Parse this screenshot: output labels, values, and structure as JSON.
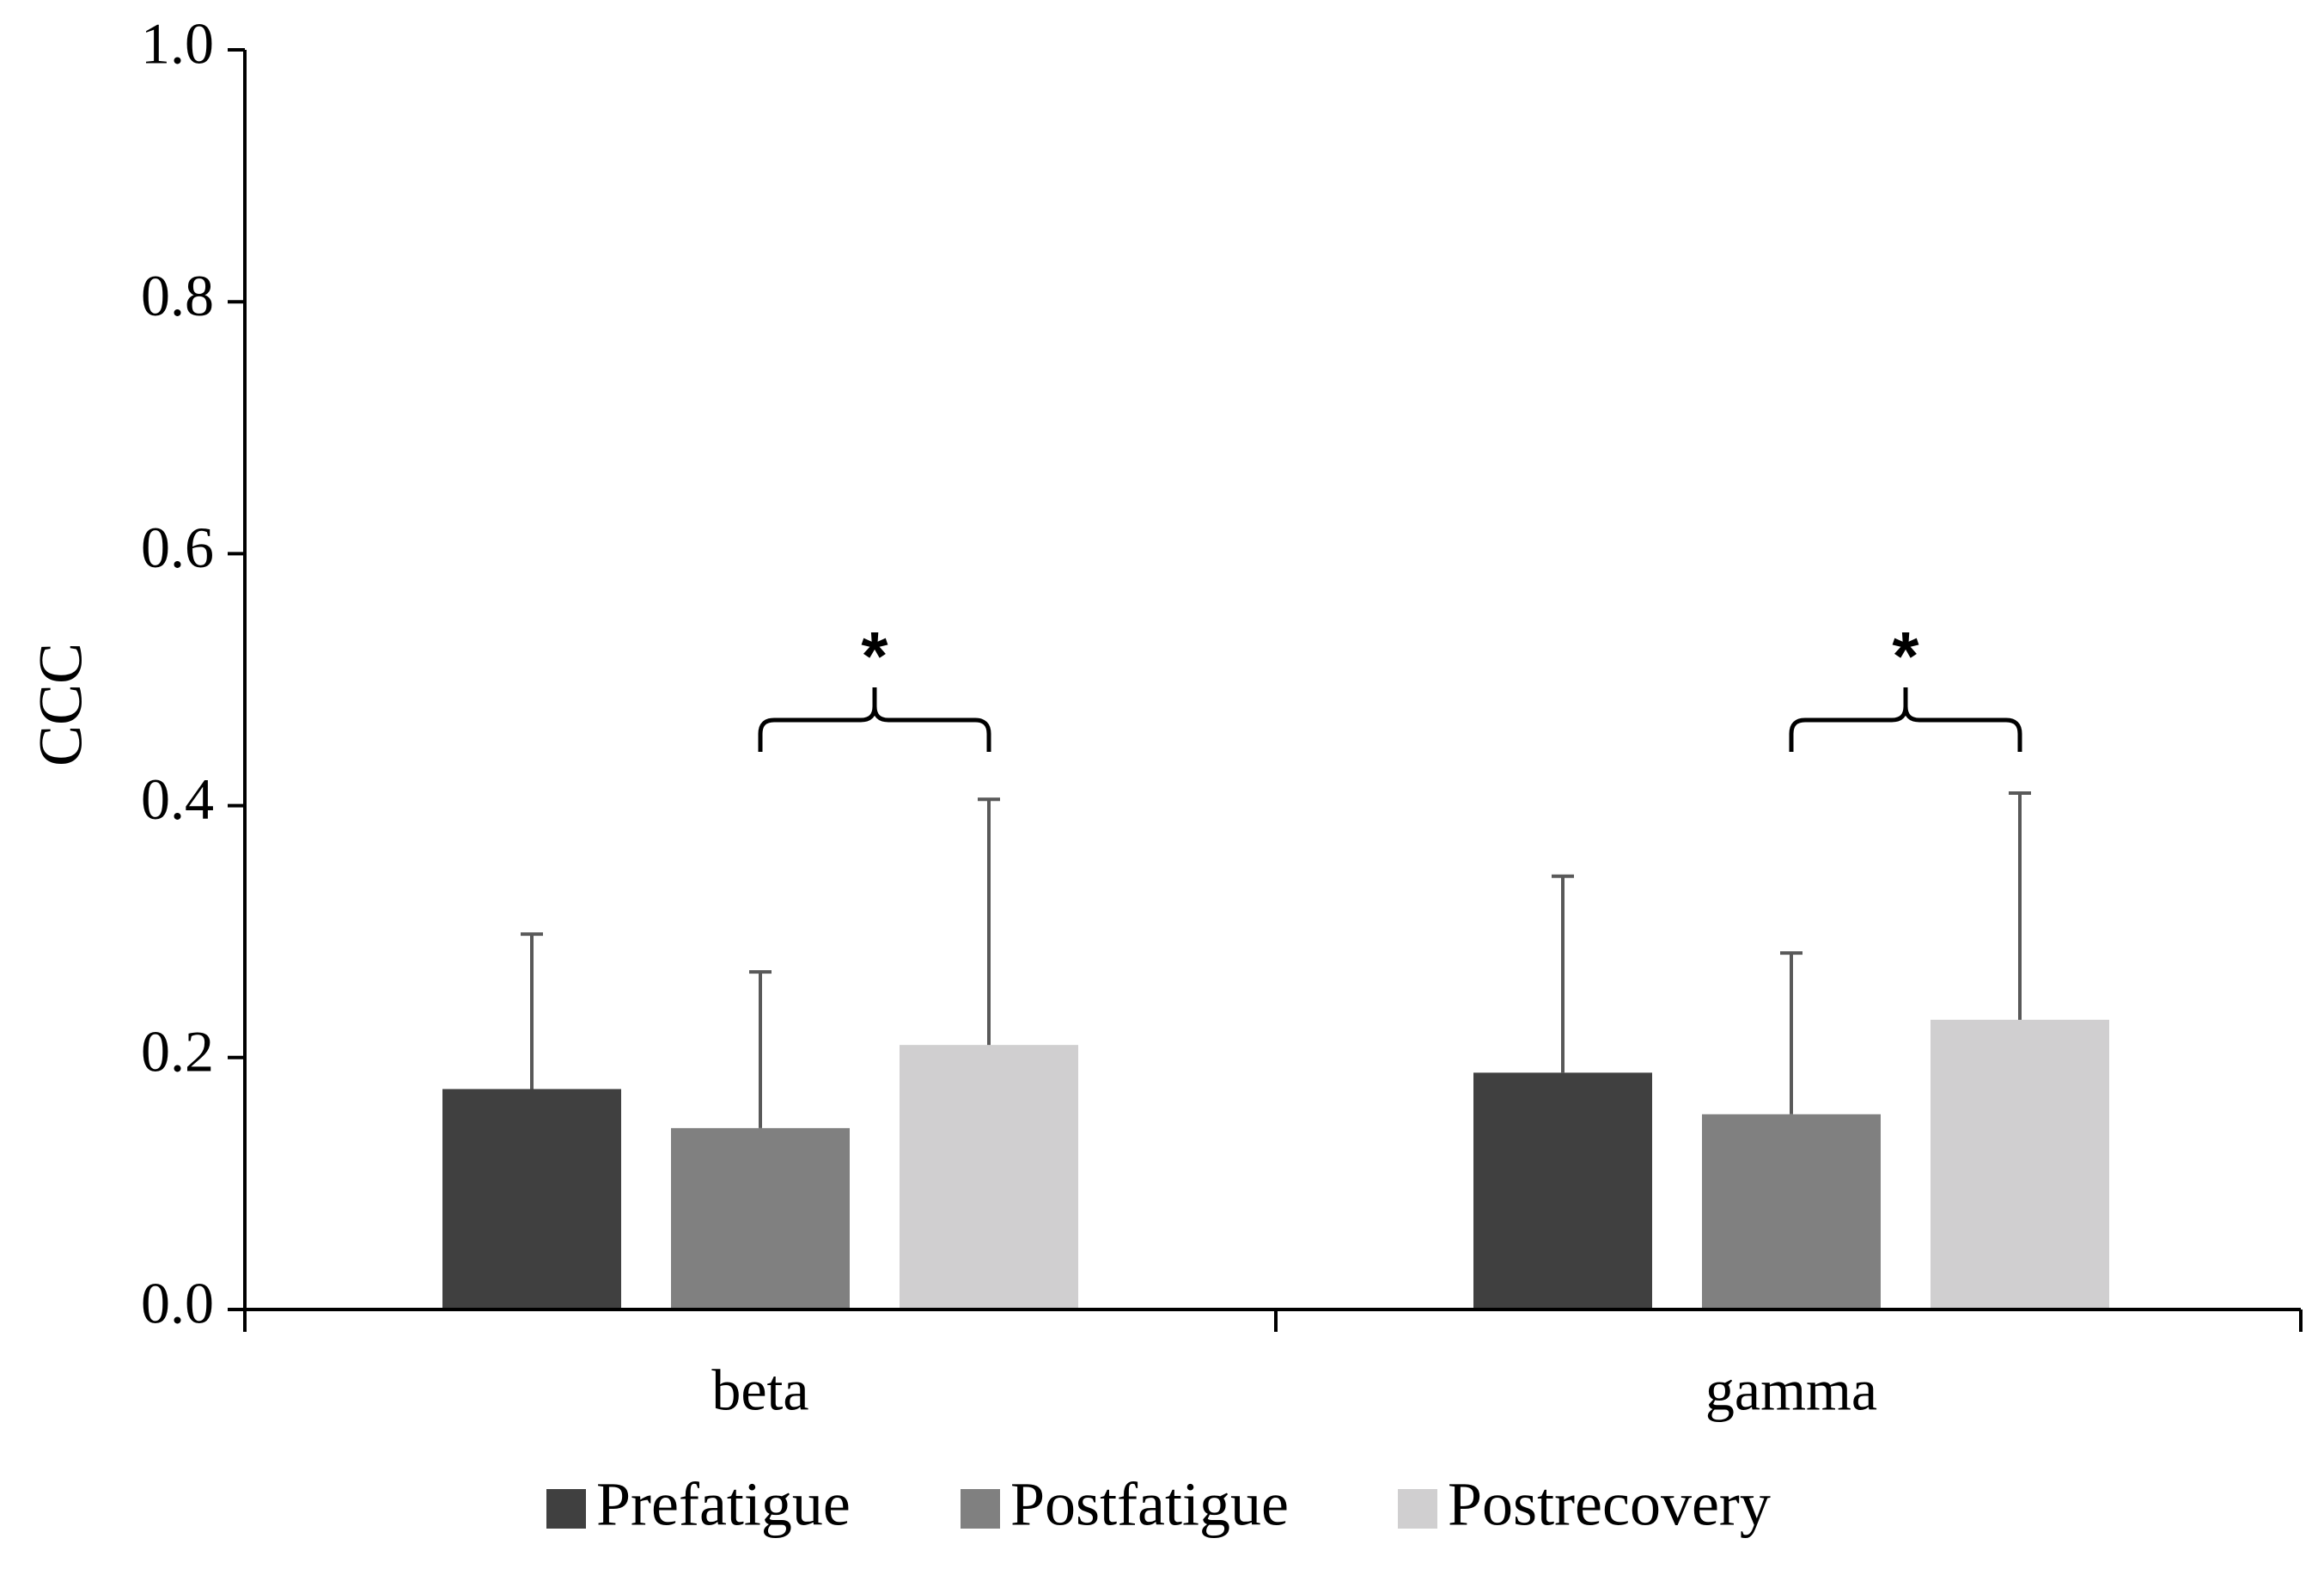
{
  "chart_data": {
    "type": "bar",
    "title": "",
    "xlabel": "",
    "ylabel": "CCC",
    "ylim": [
      0,
      1.0
    ],
    "yticks": [
      "0.0",
      "0.2",
      "0.4",
      "0.6",
      "0.8",
      "1.0"
    ],
    "grid": false,
    "legend_position": "bottom",
    "categories": [
      "beta",
      "gamma"
    ],
    "series": [
      {
        "name": "Prefatigue",
        "color": "#404040",
        "values": [
          0.175,
          0.188
        ],
        "errors": [
          0.123,
          0.156
        ]
      },
      {
        "name": "Postfatigue",
        "color": "#808080",
        "values": [
          0.144,
          0.155
        ],
        "errors": [
          0.124,
          0.128
        ]
      },
      {
        "name": "Postrecovery",
        "color": "#d0cfd0",
        "values": [
          0.21,
          0.23
        ],
        "errors": [
          0.195,
          0.18
        ]
      }
    ],
    "annotations": [
      {
        "category": "beta",
        "between": [
          "Postfatigue",
          "Postrecovery"
        ],
        "text": "*"
      },
      {
        "category": "gamma",
        "between": [
          "Postfatigue",
          "Postrecovery"
        ],
        "text": "*"
      }
    ]
  }
}
